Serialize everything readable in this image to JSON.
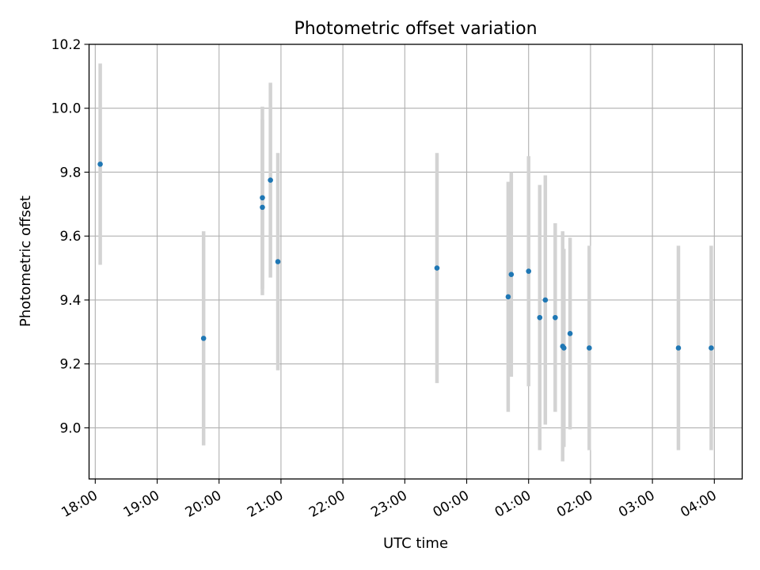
{
  "chart_data": {
    "type": "scatter",
    "title": "Photometric offset variation",
    "xlabel": "UTC time",
    "ylabel": "Photometric offset",
    "x_unit": "hour of UTC time, counted continuously past midnight (24 = 00:00, 25 = 01:00, ...)",
    "xlim": [
      17.9,
      28.45
    ],
    "ylim": [
      8.84,
      10.2
    ],
    "x_ticks": [
      {
        "value": 18,
        "label": "18:00"
      },
      {
        "value": 19,
        "label": "19:00"
      },
      {
        "value": 20,
        "label": "20:00"
      },
      {
        "value": 21,
        "label": "21:00"
      },
      {
        "value": 22,
        "label": "22:00"
      },
      {
        "value": 23,
        "label": "23:00"
      },
      {
        "value": 24,
        "label": "00:00"
      },
      {
        "value": 25,
        "label": "01:00"
      },
      {
        "value": 26,
        "label": "02:00"
      },
      {
        "value": 27,
        "label": "03:00"
      },
      {
        "value": 28,
        "label": "04:00"
      }
    ],
    "y_ticks": [
      {
        "value": 9.0,
        "label": "9.0"
      },
      {
        "value": 9.2,
        "label": "9.2"
      },
      {
        "value": 9.4,
        "label": "9.4"
      },
      {
        "value": 9.6,
        "label": "9.6"
      },
      {
        "value": 9.8,
        "label": "9.8"
      },
      {
        "value": 10.0,
        "label": "10.0"
      },
      {
        "value": 10.2,
        "label": "10.2"
      }
    ],
    "grid": true,
    "marker_color": "#1f77b4",
    "errorbar_color": "#d3d3d3",
    "points": [
      {
        "x": 18.08,
        "y": 9.825,
        "err": 0.315
      },
      {
        "x": 19.75,
        "y": 9.28,
        "err": 0.335
      },
      {
        "x": 20.7,
        "y": 9.69,
        "err": 0.275
      },
      {
        "x": 20.7,
        "y": 9.72,
        "err": 0.285
      },
      {
        "x": 20.83,
        "y": 9.775,
        "err": 0.305
      },
      {
        "x": 20.95,
        "y": 9.52,
        "err": 0.34
      },
      {
        "x": 23.52,
        "y": 9.5,
        "err": 0.36
      },
      {
        "x": 24.67,
        "y": 9.41,
        "err": 0.36
      },
      {
        "x": 24.72,
        "y": 9.48,
        "err": 0.32
      },
      {
        "x": 25.0,
        "y": 9.49,
        "err": 0.36
      },
      {
        "x": 25.18,
        "y": 9.345,
        "err": 0.415
      },
      {
        "x": 25.27,
        "y": 9.4,
        "err": 0.39
      },
      {
        "x": 25.43,
        "y": 9.345,
        "err": 0.295
      },
      {
        "x": 25.55,
        "y": 9.255,
        "err": 0.36
      },
      {
        "x": 25.57,
        "y": 9.25,
        "err": 0.31
      },
      {
        "x": 25.67,
        "y": 9.295,
        "err": 0.3
      },
      {
        "x": 25.98,
        "y": 9.25,
        "err": 0.32
      },
      {
        "x": 27.42,
        "y": 9.25,
        "err": 0.32
      },
      {
        "x": 27.95,
        "y": 9.25,
        "err": 0.32
      }
    ]
  }
}
